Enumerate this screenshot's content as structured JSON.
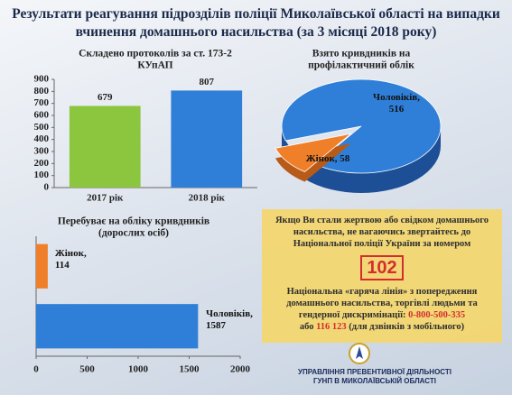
{
  "title": "Результати реагування підрозділів поліції Миколаївської області на випадки вчинення домашнього насильства (за 3 місяці 2018 року)",
  "chart_data": [
    {
      "type": "bar",
      "title": [
        "Складено протоколів за ст. 173-2",
        "КУпАП"
      ],
      "categories": [
        "2017 рік",
        "2018 рік"
      ],
      "values": [
        679,
        807
      ],
      "colors": [
        "#8cc63f",
        "#2f7fd8"
      ],
      "ylim": [
        0,
        900
      ],
      "yticks": [
        0,
        100,
        200,
        300,
        400,
        500,
        600,
        700,
        800,
        900
      ]
    },
    {
      "type": "pie",
      "title": [
        "Взято кривдників на",
        "профілактичний облік"
      ],
      "categories": [
        "Чоловіків",
        "Жінок"
      ],
      "values": [
        516,
        58
      ],
      "value_labels": [
        "Чоловіків, 516",
        "Жінок, 58"
      ],
      "colors": [
        "#2f7fd8",
        "#f07f2a"
      ]
    },
    {
      "type": "hbar",
      "title": [
        "Перебуває на обліку кривдників",
        "(дорослих осіб)"
      ],
      "categories": [
        "Жінок",
        "Чоловіків"
      ],
      "values": [
        114,
        1587
      ],
      "value_labels": [
        "Жінок, 114",
        "Чоловіків, 1587"
      ],
      "colors": [
        "#f07f2a",
        "#2f7fd8"
      ],
      "xlim": [
        0,
        2000
      ],
      "xticks": [
        0,
        500,
        1000,
        1500,
        2000
      ]
    }
  ],
  "notice": {
    "text": "Якщо Ви стали жертвою або свідком домашнього насильства, не вагаючись звертайтесь до Національної поліції України за номером",
    "number": "102",
    "hotline": "Національна «гаряча лінія» з попередження домашнього насильства, торгівлі людьми та гендерної дискримінації:",
    "phone": "0-800-500-335",
    "or": "або",
    "mobile": "116 123",
    "mobile_note": "(для дзвінків з мобільного)"
  },
  "footer": [
    "УПРАВЛІННЯ ПРЕВЕНТИВНОЇ ДІЯЛЬНОСТІ",
    "ГУНП В МИКОЛАЇВСЬКІЙ ОБЛАСТІ"
  ]
}
